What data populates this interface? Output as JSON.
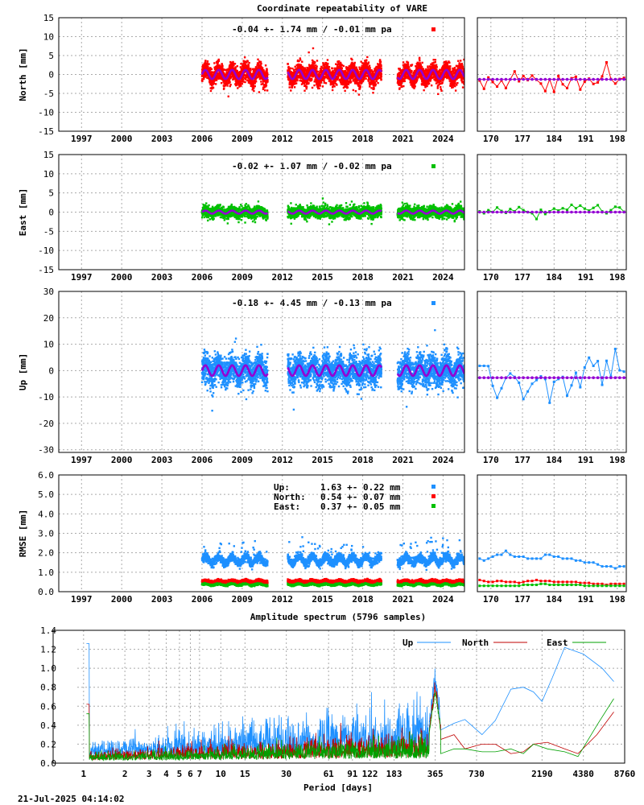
{
  "title": "Coordinate repeatability of VARE",
  "timestamp": "21-Jul-2025 04:14:02",
  "colors": {
    "north": "#ff0000",
    "east": "#00c000",
    "up": "#1e90ff",
    "model": "#9400d3"
  },
  "chart_data": [
    {
      "type": "scatter",
      "id": "north",
      "ylabel": "North [mm]",
      "stats_text": "-0.04 +- 1.74 mm / -0.01 mm pa",
      "xlim": [
        1995.3,
        2025.6
      ],
      "ylim": [
        -15,
        15
      ],
      "yticks": [
        15,
        10,
        5,
        0,
        -5,
        -10,
        -15
      ],
      "xticks": [
        1997,
        2000,
        2003,
        2006,
        2009,
        2012,
        2015,
        2018,
        2021,
        2024
      ],
      "segments": [
        [
          2006.0,
          2010.9
        ],
        [
          2012.4,
          2019.4
        ],
        [
          2020.6,
          2025.6
        ]
      ],
      "noise_sd": 2.0,
      "seasonal_amplitude": 1.2,
      "zoom": {
        "xlim": [
          167,
          200
        ],
        "xticks": [
          170,
          177,
          184,
          191,
          198
        ],
        "baseline": -1.3,
        "values": [
          -1.6,
          -3.8,
          -0.8,
          -2.0,
          -3.2,
          -1.6,
          -3.6,
          -1.3,
          0.8,
          -1.8,
          -0.4,
          -1.5,
          -0.3,
          -1.4,
          -2.4,
          -4.4,
          -1.3,
          -4.6,
          -0.4,
          -2.6,
          -3.6,
          -1.0,
          -0.6,
          -4.0,
          -1.9,
          -1.1,
          -2.5,
          -2.1,
          -0.5,
          3.2,
          -1.2,
          -2.4,
          -1.2,
          -0.9
        ]
      }
    },
    {
      "type": "scatter",
      "id": "east",
      "ylabel": "East [mm]",
      "stats_text": "-0.02 +- 1.07 mm / -0.02 mm pa",
      "xlim": [
        1995.3,
        2025.6
      ],
      "ylim": [
        -15,
        15
      ],
      "yticks": [
        15,
        10,
        5,
        0,
        -5,
        -10,
        -15
      ],
      "xticks": [
        1997,
        2000,
        2003,
        2006,
        2009,
        2012,
        2015,
        2018,
        2021,
        2024
      ],
      "segments": [
        [
          2006.0,
          2010.9
        ],
        [
          2012.4,
          2019.4
        ],
        [
          2020.6,
          2025.6
        ]
      ],
      "noise_sd": 1.15,
      "seasonal_amplitude": 0.4,
      "zoom": {
        "xlim": [
          167,
          200
        ],
        "xticks": [
          170,
          177,
          184,
          191,
          198
        ],
        "baseline": 0.0,
        "values": [
          0.2,
          -0.3,
          0.5,
          0.0,
          1.2,
          0.3,
          -0.2,
          0.8,
          0.2,
          1.3,
          0.5,
          0.0,
          -0.3,
          -1.8,
          0.6,
          -0.5,
          0.2,
          0.9,
          0.4,
          1.0,
          0.6,
          1.9,
          1.0,
          1.7,
          0.9,
          0.4,
          1.1,
          1.8,
          0.2,
          -0.3,
          0.5,
          1.4,
          1.2,
          0.1
        ]
      }
    },
    {
      "type": "scatter",
      "id": "up",
      "ylabel": "Up [mm]",
      "stats_text": "-0.18 +- 4.45 mm / -0.13 mm pa",
      "xlim": [
        1995.3,
        2025.6
      ],
      "ylim": [
        -31,
        30
      ],
      "yticks": [
        30,
        20,
        10,
        0,
        -10,
        -20,
        -30
      ],
      "xticks": [
        1997,
        2000,
        2003,
        2006,
        2009,
        2012,
        2015,
        2018,
        2021,
        2024
      ],
      "segments": [
        [
          2006.0,
          2010.9
        ],
        [
          2012.4,
          2019.4
        ],
        [
          2020.6,
          2025.6
        ]
      ],
      "noise_sd": 4.6,
      "seasonal_amplitude": 2.0,
      "zoom": {
        "xlim": [
          167,
          200
        ],
        "xticks": [
          170,
          177,
          184,
          191,
          198
        ],
        "baseline": -2.7,
        "values": [
          1.8,
          1.8,
          1.7,
          -5.8,
          -10.3,
          -6.7,
          -2.8,
          -1.1,
          -2.4,
          -4.6,
          -10.8,
          -7.9,
          -5.0,
          -3.6,
          -2.2,
          -3.2,
          -12.2,
          -4.3,
          -3.2,
          -2.4,
          -9.5,
          -5.6,
          -0.8,
          -6.3,
          1.2,
          4.9,
          1.8,
          3.6,
          -5.4,
          3.7,
          -2.3,
          8.2,
          0.1,
          -0.4
        ]
      }
    },
    {
      "type": "scatter",
      "id": "rmse",
      "ylabel": "RMSE [mm]",
      "xlim": [
        1995.3,
        2025.6
      ],
      "ylim": [
        0,
        6
      ],
      "yticks": [
        6.0,
        5.0,
        4.0,
        3.0,
        2.0,
        1.0,
        0.0
      ],
      "xticks": [
        1997,
        2000,
        2003,
        2006,
        2009,
        2012,
        2015,
        2018,
        2021,
        2024
      ],
      "segments": [
        [
          2006.0,
          2010.9
        ],
        [
          2012.4,
          2019.4
        ],
        [
          2020.6,
          2025.6
        ]
      ],
      "legend": [
        {
          "name": "Up:",
          "value": "1.63 +- 0.22 mm",
          "color": "#1e90ff"
        },
        {
          "name": "North:",
          "value": "0.54 +- 0.07 mm",
          "color": "#ff0000"
        },
        {
          "name": "East:",
          "value": "0.37 +- 0.05 mm",
          "color": "#00c000"
        }
      ],
      "series": [
        {
          "name": "Up",
          "mean": 1.63,
          "sd": 0.22,
          "color": "#1e90ff"
        },
        {
          "name": "North",
          "mean": 0.54,
          "sd": 0.07,
          "color": "#ff0000"
        },
        {
          "name": "East",
          "mean": 0.37,
          "sd": 0.05,
          "color": "#00c000"
        }
      ],
      "zoom": {
        "xlim": [
          167,
          200
        ],
        "xticks": [
          170,
          177,
          184,
          191,
          198
        ],
        "up": [
          1.7,
          1.6,
          1.7,
          1.8,
          1.9,
          1.9,
          2.1,
          1.9,
          1.8,
          1.8,
          1.8,
          1.7,
          1.7,
          1.7,
          1.7,
          1.9,
          1.9,
          1.8,
          1.8,
          1.7,
          1.7,
          1.7,
          1.6,
          1.6,
          1.5,
          1.5,
          1.5,
          1.4,
          1.3,
          1.3,
          1.3,
          1.2,
          1.3,
          1.3
        ],
        "north": [
          0.6,
          0.55,
          0.5,
          0.5,
          0.55,
          0.55,
          0.5,
          0.5,
          0.5,
          0.45,
          0.5,
          0.55,
          0.55,
          0.6,
          0.55,
          0.55,
          0.55,
          0.5,
          0.5,
          0.5,
          0.5,
          0.5,
          0.5,
          0.45,
          0.45,
          0.45,
          0.4,
          0.4,
          0.4,
          0.35,
          0.4,
          0.4,
          0.4,
          0.4
        ],
        "east": [
          0.3,
          0.3,
          0.3,
          0.3,
          0.3,
          0.3,
          0.3,
          0.3,
          0.3,
          0.3,
          0.35,
          0.35,
          0.35,
          0.35,
          0.4,
          0.4,
          0.35,
          0.35,
          0.35,
          0.35,
          0.35,
          0.35,
          0.35,
          0.35,
          0.3,
          0.3,
          0.3,
          0.3,
          0.3,
          0.3,
          0.3,
          0.3,
          0.3,
          0.3
        ]
      }
    },
    {
      "type": "line",
      "id": "spectrum",
      "title": "Amplitude spectrum (5796 samples)",
      "xlabel": "Period [days]",
      "xscale": "log",
      "xlim": [
        0.9,
        8760
      ],
      "ylim": [
        0,
        1.4
      ],
      "xticks": [
        1,
        2,
        3,
        4,
        5,
        6,
        7,
        10,
        15,
        30,
        61,
        91,
        122,
        183,
        365,
        730,
        2190,
        4380,
        8760
      ],
      "yticks": [
        1.4,
        1.2,
        1.0,
        0.8,
        0.6,
        0.4,
        0.2,
        0.0
      ],
      "legend_position": "top-right",
      "series": [
        {
          "name": "Up",
          "color": "#1e90ff"
        },
        {
          "name": "North",
          "color": "#c00000"
        },
        {
          "name": "East",
          "color": "#00a000"
        }
      ],
      "peaks": [
        {
          "period": 1.05,
          "up": 1.26,
          "north": 0.62,
          "east": 0.52
        },
        {
          "period": 365,
          "up": 0.8,
          "north": 0.74,
          "east": 0.72
        }
      ],
      "long_period": {
        "up": [
          [
            400,
            0.35
          ],
          [
            500,
            0.42
          ],
          [
            600,
            0.46
          ],
          [
            800,
            0.3
          ],
          [
            1000,
            0.45
          ],
          [
            1300,
            0.78
          ],
          [
            1600,
            0.8
          ],
          [
            1900,
            0.75
          ],
          [
            2190,
            0.65
          ],
          [
            2600,
            0.9
          ],
          [
            3200,
            1.22
          ],
          [
            4380,
            1.15
          ],
          [
            6000,
            1.0
          ],
          [
            7300,
            0.86
          ]
        ],
        "north": [
          [
            400,
            0.25
          ],
          [
            500,
            0.3
          ],
          [
            600,
            0.15
          ],
          [
            800,
            0.2
          ],
          [
            1000,
            0.2
          ],
          [
            1300,
            0.1
          ],
          [
            1600,
            0.12
          ],
          [
            1900,
            0.2
          ],
          [
            2400,
            0.22
          ],
          [
            3200,
            0.15
          ],
          [
            4000,
            0.1
          ],
          [
            5500,
            0.3
          ],
          [
            7300,
            0.54
          ]
        ],
        "east": [
          [
            400,
            0.1
          ],
          [
            500,
            0.15
          ],
          [
            600,
            0.15
          ],
          [
            800,
            0.12
          ],
          [
            1000,
            0.12
          ],
          [
            1300,
            0.15
          ],
          [
            1600,
            0.1
          ],
          [
            1900,
            0.2
          ],
          [
            2400,
            0.15
          ],
          [
            3200,
            0.12
          ],
          [
            4000,
            0.07
          ],
          [
            5500,
            0.4
          ],
          [
            7300,
            0.68
          ]
        ]
      }
    }
  ]
}
